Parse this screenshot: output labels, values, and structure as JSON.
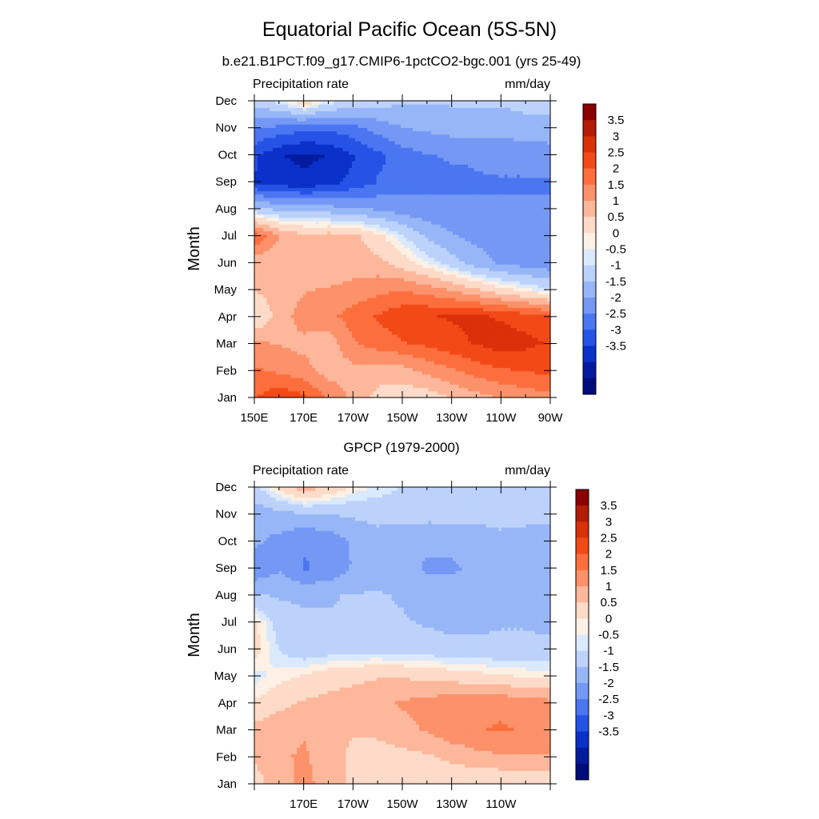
{
  "figure": {
    "title": "Equatorial Pacific Ocean (5S-5N)",
    "colorbar_levels": [
      "3.5",
      "3",
      "2.5",
      "2",
      "1.5",
      "1",
      "0.5",
      "0",
      "-0.5",
      "-1",
      "-1.5",
      "-2",
      "-2.5",
      "-3",
      "-3.5"
    ],
    "colorbar_colors": [
      "#8b0000",
      "#b31d05",
      "#d9310a",
      "#f24a17",
      "#fc6e3d",
      "#fc916a",
      "#fdb79b",
      "#fddbc8",
      "#fdf0e4",
      "#dbe9fc",
      "#bcd2fb",
      "#97b6f7",
      "#7598f5",
      "#4a76f2",
      "#2553e6",
      "#0a31c9",
      "#041ba0",
      "#000c7a"
    ]
  },
  "chart_data": [
    {
      "type": "heatmap",
      "title": "b.e21.B1PCT.f09_g17.CMIP6-1pctCO2-bgc.001 (yrs 25-49)",
      "left_label": "Precipitation rate",
      "right_label": "mm/day",
      "ylabel": "Month",
      "xlabel": "",
      "x_ticks": [
        "150E",
        "170E",
        "170W",
        "150W",
        "130W",
        "110W",
        "90W"
      ],
      "y_ticks": [
        "Jan",
        "Feb",
        "Mar",
        "Apr",
        "May",
        "Jun",
        "Jul",
        "Aug",
        "Sep",
        "Oct",
        "Nov",
        "Dec"
      ],
      "x": [
        "150E",
        "160E",
        "170E",
        "180",
        "170W",
        "160W",
        "150W",
        "140W",
        "130W",
        "120W",
        "110W",
        "100W",
        "90W"
      ],
      "y": [
        "Jan",
        "Feb",
        "Mar",
        "Apr",
        "May",
        "Jun",
        "Jul",
        "Aug",
        "Sep",
        "Oct",
        "Nov",
        "Dec"
      ],
      "values": [
        [
          2.2,
          2.6,
          2.3,
          1.6,
          1.1,
          0.6,
          0.4,
          0.5,
          0.8,
          1.1,
          1.3,
          1.5,
          1.6
        ],
        [
          1.8,
          1.6,
          1.4,
          1.0,
          1.1,
          1.0,
          1.1,
          1.4,
          1.7,
          2.0,
          2.2,
          2.3,
          2.4
        ],
        [
          1.3,
          1.2,
          1.1,
          1.0,
          1.7,
          2.0,
          2.2,
          2.4,
          2.6,
          2.8,
          3.0,
          2.9,
          2.7
        ],
        [
          0.2,
          1.0,
          1.5,
          1.6,
          2.0,
          2.3,
          2.6,
          2.7,
          2.8,
          2.8,
          2.7,
          2.5,
          2.3
        ],
        [
          0.8,
          1.0,
          1.2,
          1.3,
          1.4,
          1.6,
          1.7,
          1.5,
          1.2,
          0.8,
          0.4,
          0.1,
          -0.2
        ],
        [
          0.9,
          0.9,
          0.8,
          0.8,
          1.0,
          0.9,
          0.5,
          0.0,
          -0.5,
          -1.0,
          -1.3,
          -1.5,
          -1.6
        ],
        [
          2.2,
          1.2,
          0.9,
          1.0,
          0.9,
          0.4,
          -0.2,
          -0.8,
          -1.2,
          -1.4,
          -1.5,
          -1.6,
          -1.6
        ],
        [
          -0.6,
          -0.8,
          -0.9,
          -1.0,
          -1.1,
          -1.3,
          -1.5,
          -1.6,
          -1.6,
          -1.7,
          -1.7,
          -1.7,
          -1.7
        ],
        [
          -2.8,
          -3.0,
          -3.1,
          -2.9,
          -2.6,
          -2.2,
          -2.0,
          -1.9,
          -1.9,
          -1.8,
          -1.8,
          -1.8,
          -1.8
        ],
        [
          -2.7,
          -3.2,
          -3.4,
          -3.2,
          -2.8,
          -2.4,
          -2.0,
          -1.8,
          -1.7,
          -1.7,
          -1.6,
          -1.6,
          -1.5
        ],
        [
          -1.8,
          -2.0,
          -2.2,
          -2.2,
          -2.0,
          -1.6,
          -1.3,
          -1.2,
          -1.1,
          -1.1,
          -1.1,
          -1.0,
          -1.0
        ],
        [
          -0.6,
          -0.2,
          0.4,
          -0.2,
          -0.5,
          -0.6,
          -0.7,
          -0.7,
          -0.7,
          -0.7,
          -0.7,
          -0.6,
          -0.6
        ]
      ]
    },
    {
      "type": "heatmap",
      "title": "GPCP (1979-2000)",
      "left_label": "Precipitation rate",
      "right_label": "mm/day",
      "ylabel": "Month",
      "xlabel": "",
      "x_ticks": [
        "",
        "170E",
        "170W",
        "150W",
        "130W",
        "110W",
        ""
      ],
      "y_ticks": [
        "Jan",
        "Feb",
        "Mar",
        "Apr",
        "May",
        "Jun",
        "Jul",
        "Aug",
        "Sep",
        "Oct",
        "Nov",
        "Dec"
      ],
      "x": [
        "150E",
        "160E",
        "170E",
        "180",
        "170W",
        "160W",
        "150W",
        "140W",
        "130W",
        "120W",
        "110W",
        "100W",
        "90W"
      ],
      "y": [
        "Jan",
        "Feb",
        "Mar",
        "Apr",
        "May",
        "Jun",
        "Jul",
        "Aug",
        "Sep",
        "Oct",
        "Nov",
        "Dec"
      ],
      "values": [
        [
          0.6,
          1.0,
          1.4,
          1.0,
          0.6,
          0.4,
          0.4,
          0.3,
          0.3,
          0.3,
          0.3,
          0.3,
          0.3
        ],
        [
          0.8,
          1.2,
          1.3,
          1.0,
          0.6,
          0.5,
          0.6,
          0.7,
          0.9,
          1.1,
          1.2,
          1.2,
          1.2
        ],
        [
          0.9,
          1.1,
          1.2,
          1.0,
          0.8,
          0.9,
          1.1,
          1.3,
          1.6,
          1.7,
          1.8,
          1.7,
          1.6
        ],
        [
          0.3,
          0.6,
          0.8,
          0.9,
          1.0,
          1.1,
          1.3,
          1.4,
          1.6,
          1.6,
          1.6,
          1.5,
          1.4
        ],
        [
          -0.1,
          0.1,
          0.3,
          0.5,
          0.6,
          0.7,
          0.7,
          0.6,
          0.5,
          0.4,
          0.3,
          0.2,
          0.1
        ],
        [
          0.4,
          -0.3,
          -0.6,
          -0.5,
          -0.4,
          -0.4,
          -0.5,
          -0.5,
          -0.6,
          -0.6,
          -0.6,
          -0.6,
          -0.6
        ],
        [
          0.3,
          -0.5,
          -0.7,
          -0.7,
          -0.7,
          -0.7,
          -0.7,
          -0.8,
          -0.9,
          -0.9,
          -0.8,
          -0.8,
          -0.9
        ],
        [
          -0.7,
          -0.8,
          -0.8,
          -0.8,
          -0.7,
          -0.7,
          -0.8,
          -1.0,
          -1.0,
          -1.1,
          -0.8,
          -0.8,
          -1.0
        ],
        [
          -1.6,
          -1.3,
          -1.8,
          -1.6,
          -1.2,
          -1.0,
          -1.1,
          -1.3,
          -1.3,
          -1.2,
          -0.9,
          -0.9,
          -1.2
        ],
        [
          -1.2,
          -1.4,
          -1.7,
          -1.6,
          -1.2,
          -1.0,
          -1.1,
          -1.2,
          -1.2,
          -1.1,
          -0.9,
          -1.0,
          -1.2
        ],
        [
          -1.1,
          -1.0,
          -0.9,
          -0.8,
          -0.7,
          -0.6,
          -0.6,
          -0.6,
          -0.6,
          -0.6,
          -0.6,
          -0.6,
          -0.6
        ],
        [
          -0.4,
          0.3,
          0.9,
          0.5,
          0.1,
          -0.1,
          -0.3,
          -0.4,
          -0.4,
          -0.4,
          -0.4,
          -0.4,
          -0.4
        ]
      ]
    }
  ]
}
